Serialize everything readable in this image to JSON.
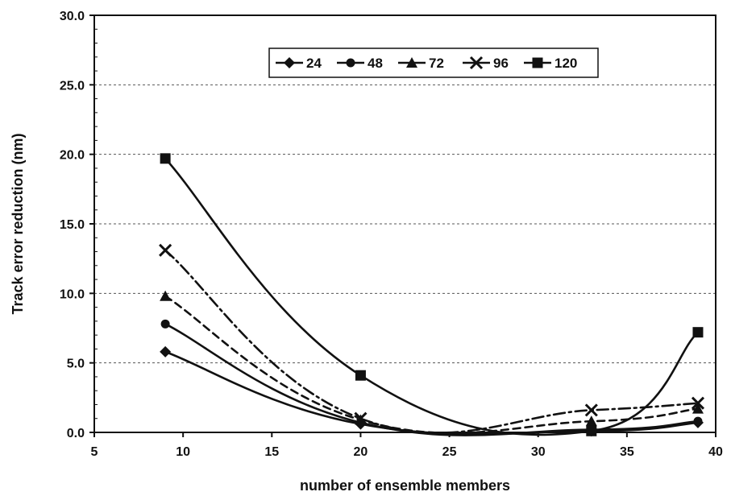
{
  "chart_data": {
    "type": "line",
    "title": "",
    "xlabel": "number of ensemble members",
    "ylabel": "Track error reduction  (nm)",
    "xlim": [
      5,
      40
    ],
    "ylim": [
      0,
      30
    ],
    "xticks": [
      5,
      10,
      15,
      20,
      25,
      30,
      35,
      40
    ],
    "xtick_labels": [
      "5",
      "10",
      "15",
      "20",
      "25",
      "30",
      "35",
      "40"
    ],
    "yticks": [
      0,
      5,
      10,
      15,
      20,
      25,
      30
    ],
    "ytick_labels": [
      "0.0",
      "5.0",
      "10.0",
      "15.0",
      "20.0",
      "25.0",
      "30.0"
    ],
    "grid": "horizontal dashed",
    "legend_position": "top-center, boxed, single row",
    "x": [
      9,
      20,
      33,
      39
    ],
    "series": [
      {
        "name": "24",
        "values": [
          5.8,
          0.6,
          0.1,
          0.7
        ],
        "marker": "diamond",
        "dash": "solid",
        "color": "#111111"
      },
      {
        "name": "48",
        "values": [
          7.8,
          0.7,
          0.2,
          0.8
        ],
        "marker": "circle",
        "dash": "solid",
        "color": "#111111"
      },
      {
        "name": "72",
        "values": [
          9.8,
          0.9,
          0.8,
          1.7
        ],
        "marker": "triangle",
        "dash": "dashed",
        "color": "#111111"
      },
      {
        "name": "96",
        "values": [
          13.1,
          1.0,
          1.6,
          2.1
        ],
        "marker": "x",
        "dash": "dash-dot",
        "color": "#111111"
      },
      {
        "name": "120",
        "values": [
          19.7,
          4.1,
          0.1,
          7.2
        ],
        "marker": "square",
        "dash": "solid",
        "color": "#111111"
      }
    ]
  }
}
